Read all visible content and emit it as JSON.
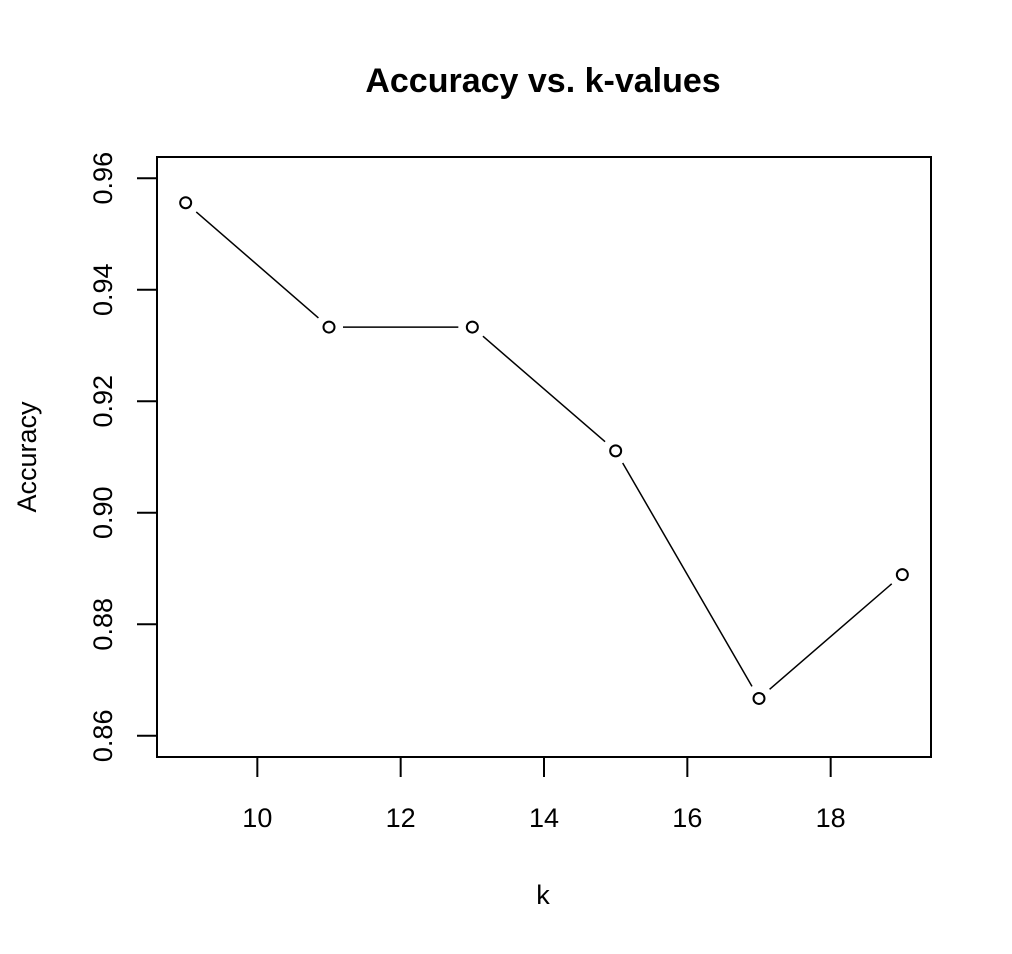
{
  "chart_data": {
    "type": "line",
    "title": "Accuracy vs. k-values",
    "xlabel": "k",
    "ylabel": "Accuracy",
    "x": [
      9,
      11,
      13,
      15,
      17,
      19
    ],
    "series": [
      {
        "values": [
          0.9556,
          0.9333,
          0.9333,
          0.9111,
          0.8667,
          0.8889
        ]
      }
    ],
    "xlim": [
      8.6,
      19.4
    ],
    "ylim": [
      0.8562,
      0.9638
    ],
    "x_ticks": [
      10,
      12,
      14,
      16,
      18
    ],
    "x_tick_labels": [
      "10",
      "12",
      "14",
      "16",
      "18"
    ],
    "y_ticks": [
      0.86,
      0.88,
      0.9,
      0.92,
      0.94,
      0.96
    ],
    "y_tick_labels": [
      "0.86",
      "0.88",
      "0.90",
      "0.92",
      "0.94",
      "0.96"
    ],
    "grid": false,
    "marker": "open-circle",
    "line_color": "#000000"
  }
}
